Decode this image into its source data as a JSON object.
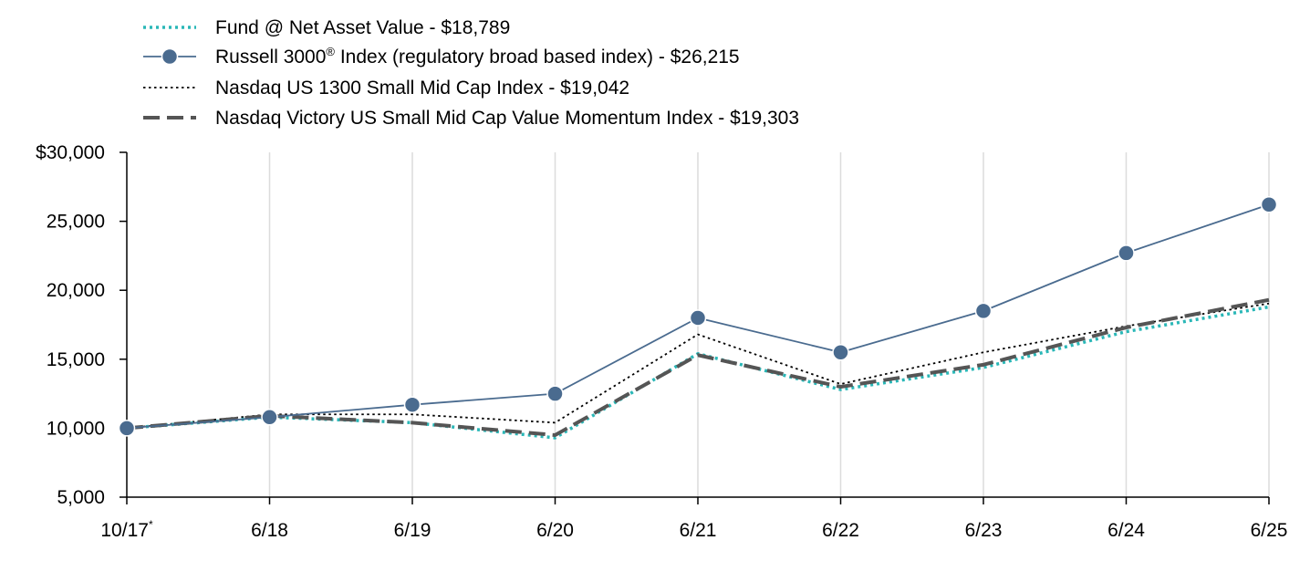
{
  "chart_data": {
    "type": "line",
    "title": "",
    "xlabel": "",
    "ylabel": "",
    "x": [
      "10/17",
      "6/18",
      "6/19",
      "6/20",
      "6/21",
      "6/22",
      "6/23",
      "6/24",
      "6/25"
    ],
    "x_footnote_mark": "*",
    "ylim": [
      5000,
      30000
    ],
    "y_ticks": [
      5000,
      10000,
      15000,
      20000,
      25000,
      30000
    ],
    "y_tick_labels": [
      "5,000",
      "10,000",
      "15,000",
      "20,000",
      "25,000",
      "$30,000"
    ],
    "grid": "vertical",
    "legend_position": "top-left",
    "series": [
      {
        "name": "Fund @ Net Asset Value - $18,789",
        "style": "dotted",
        "color": "#2ab7b7",
        "values": [
          10000,
          10800,
          10400,
          9300,
          15400,
          12800,
          14400,
          17000,
          18789
        ]
      },
      {
        "name_prefix": "Russell 3000",
        "name_sup": "®",
        "name_suffix": " Index (regulatory broad based index) - $26,215",
        "style": "solid-markers",
        "color": "#4a6b8f",
        "values": [
          10000,
          10800,
          11700,
          12500,
          18000,
          15500,
          18500,
          22700,
          26215
        ]
      },
      {
        "name": "Nasdaq US 1300 Small Mid Cap Index - $19,042",
        "style": "dotted-fine",
        "color": "#000000",
        "values": [
          10000,
          11000,
          11000,
          10400,
          16800,
          13200,
          15500,
          17400,
          19042
        ]
      },
      {
        "name": "Nasdaq Victory US Small Mid Cap Value Momentum Index - $19,303",
        "style": "dashed",
        "color": "#555555",
        "values": [
          10000,
          10900,
          10400,
          9500,
          15300,
          13000,
          14600,
          17300,
          19303
        ]
      }
    ]
  }
}
